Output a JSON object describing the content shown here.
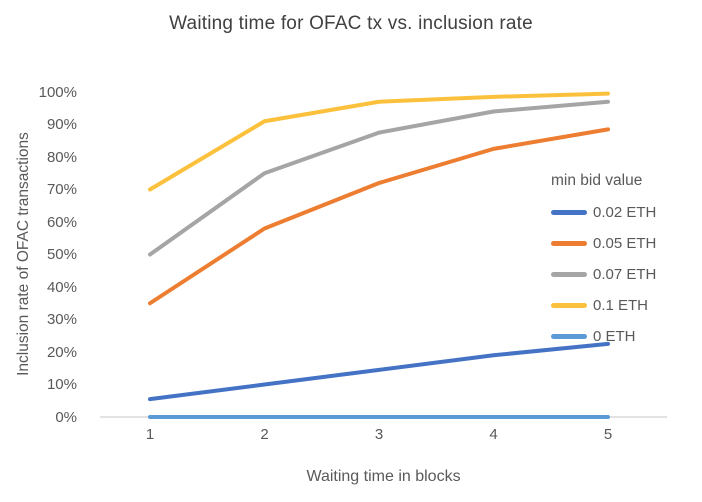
{
  "chart_data": {
    "type": "line",
    "title": "Waiting time for OFAC tx vs. inclusion rate",
    "xlabel": "Waiting time in blocks",
    "ylabel": "Inclusion rate of OFAC transactions",
    "legend_title": "min bid value",
    "legend_position": "right",
    "grid": false,
    "x": [
      1,
      2,
      3,
      4,
      5
    ],
    "x_ticks": [
      "1",
      "2",
      "3",
      "4",
      "5"
    ],
    "y_ticks": [
      "0%",
      "10%",
      "20%",
      "30%",
      "40%",
      "50%",
      "60%",
      "70%",
      "80%",
      "90%",
      "100%"
    ],
    "ylim": [
      0,
      100
    ],
    "axis_line_color": "#D9D9D9",
    "series": [
      {
        "name": "0.02 ETH",
        "color": "#4472C4",
        "values": [
          5.5,
          10,
          14.5,
          19,
          22.5
        ]
      },
      {
        "name": "0.05 ETH",
        "color": "#ED7D31",
        "values": [
          35,
          58,
          72,
          82.5,
          88.5
        ]
      },
      {
        "name": "0.07 ETH",
        "color": "#A5A5A5",
        "values": [
          50,
          75,
          87.5,
          94,
          97
        ]
      },
      {
        "name": "0.1 ETH",
        "color": "#FBC13C",
        "values": [
          70,
          91,
          97,
          98.5,
          99.5
        ]
      },
      {
        "name": "0 ETH",
        "color": "#5B9BD5",
        "values": [
          0,
          0,
          0,
          0,
          0
        ]
      }
    ]
  }
}
